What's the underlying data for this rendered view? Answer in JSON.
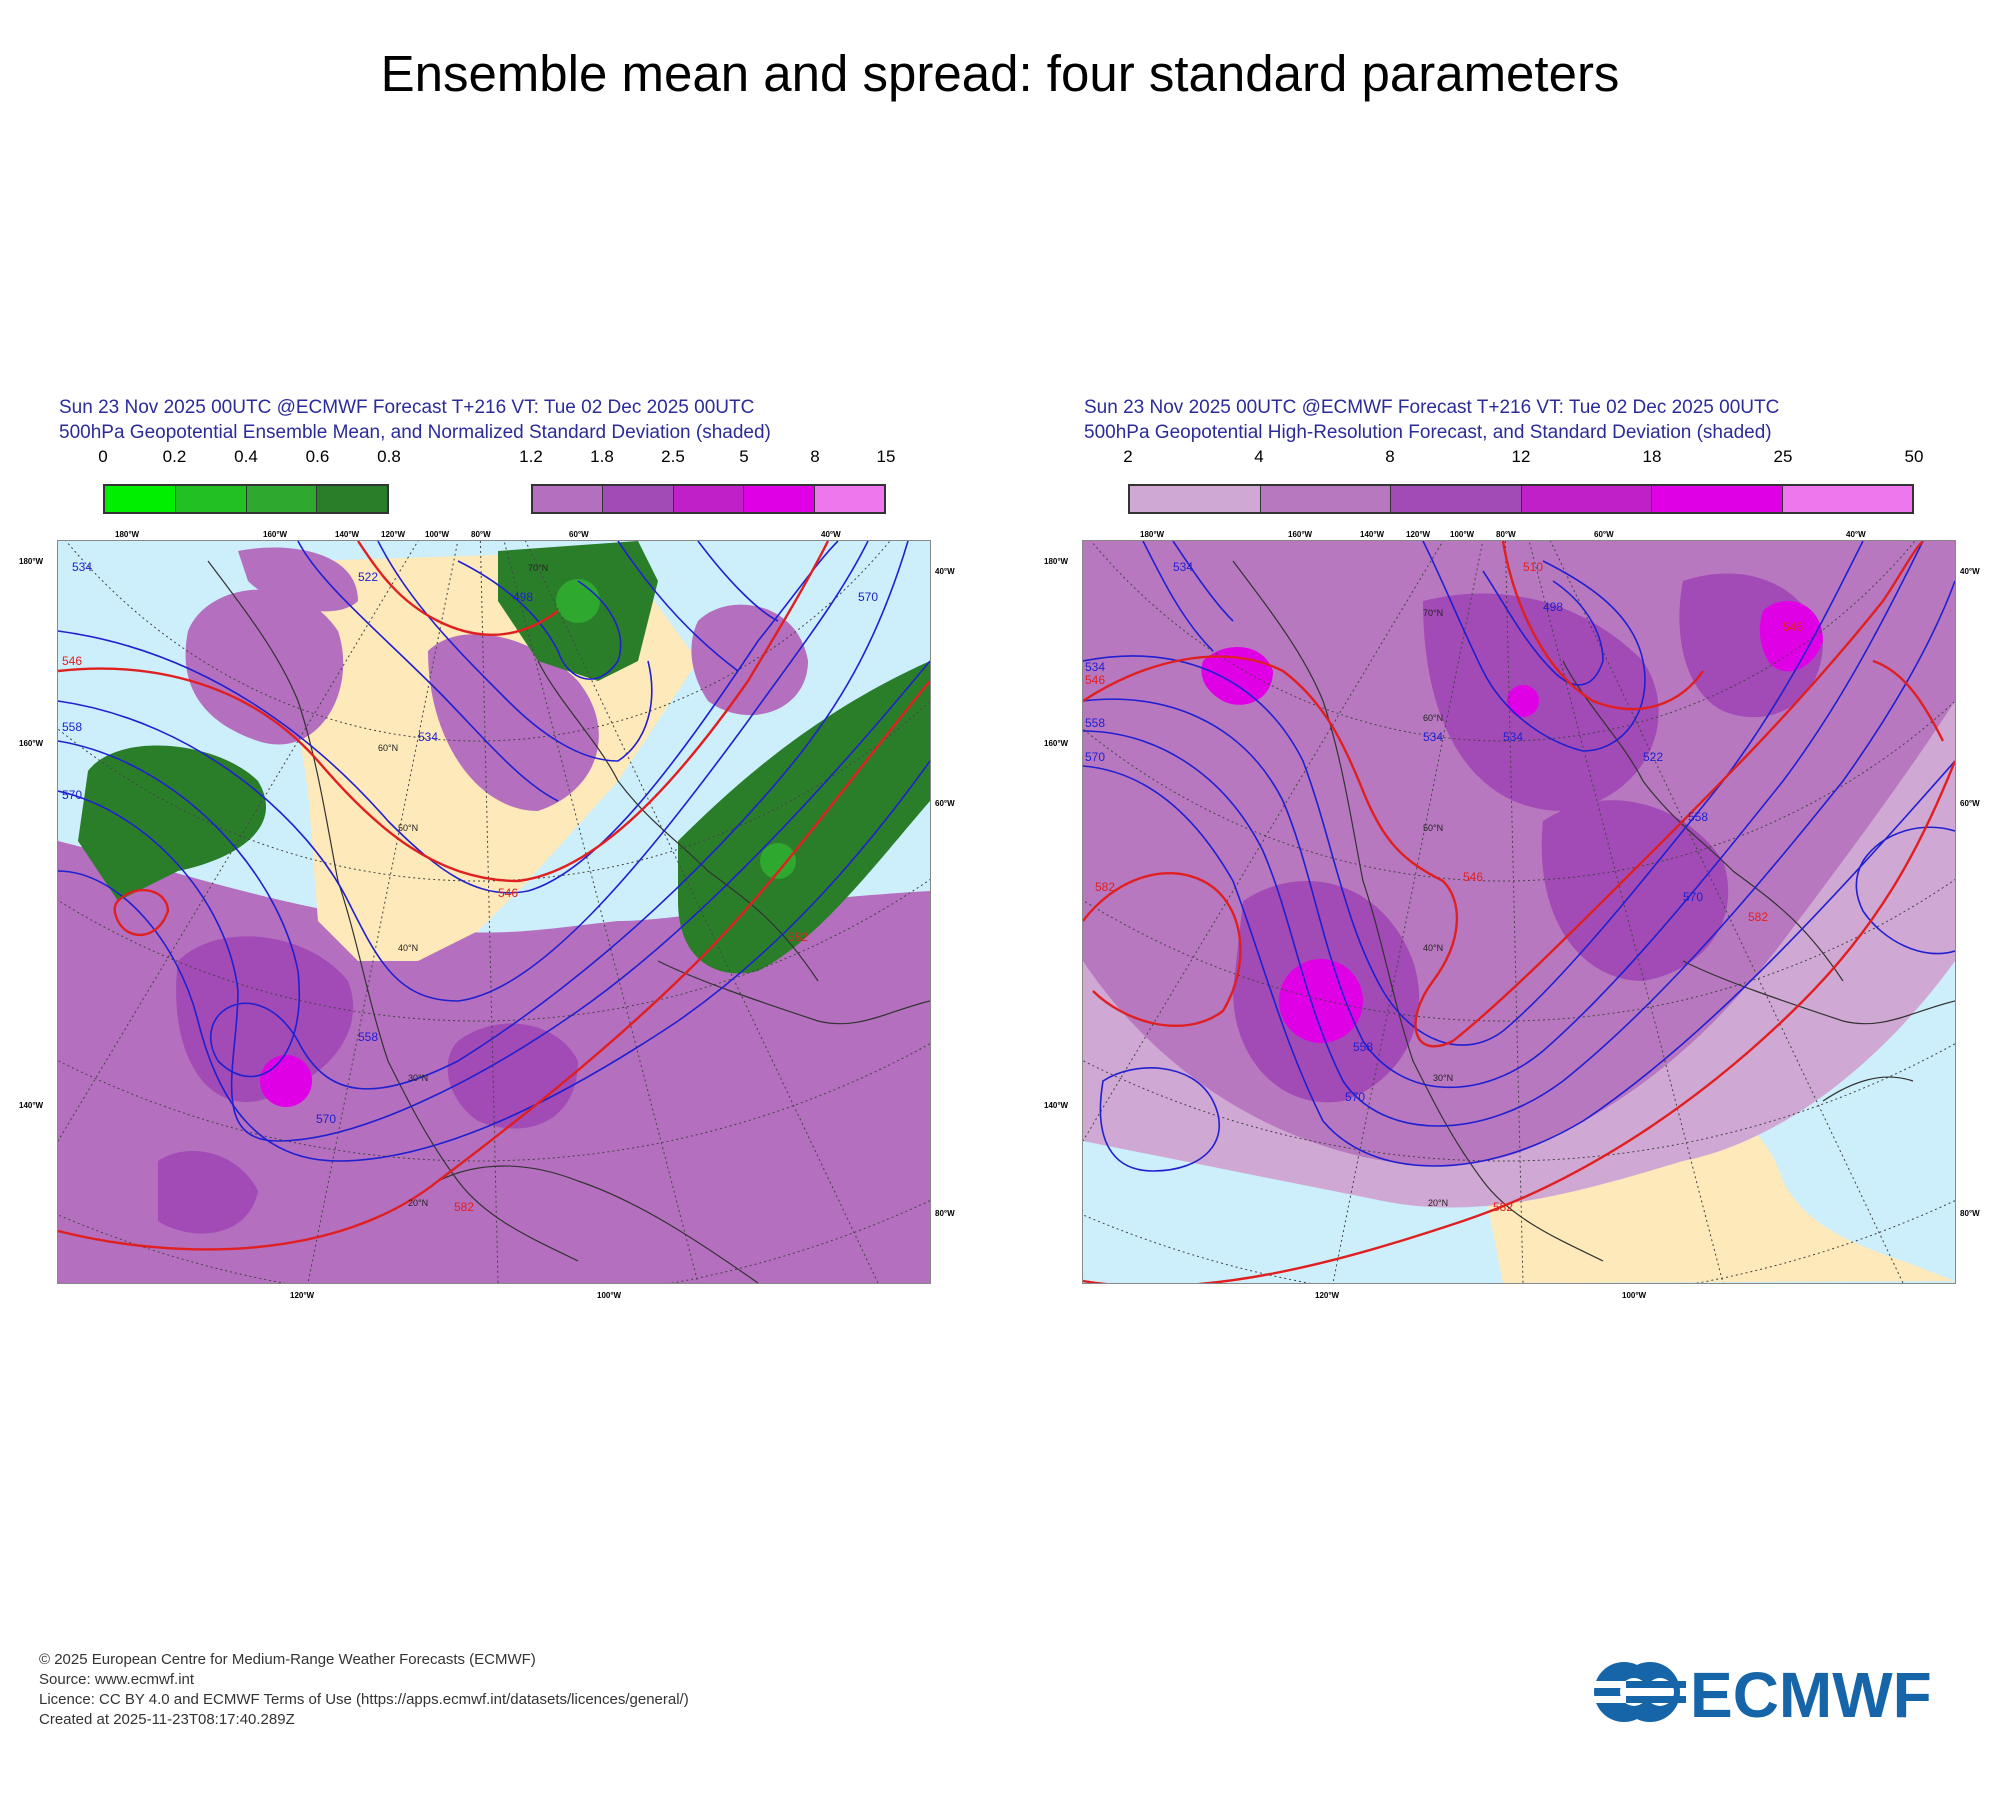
{
  "title": "Ensemble mean and spread: four standard parameters",
  "panels": [
    {
      "line1": "Sun 23 Nov 2025 00UTC @ECMWF Forecast T+216 VT: Tue 02 Dec 2025 00UTC",
      "line2": "500hPa Geopotential Ensemble Mean, and Normalized Standard Deviation (shaded)",
      "legend_green": {
        "ticks": [
          "0",
          "0.2",
          "0.4",
          "0.6",
          "0.8"
        ],
        "colors": [
          "#00ee00",
          "#22c022",
          "#2ea82e",
          "#2a7e2a"
        ]
      },
      "legend_purple": {
        "ticks": [
          "1.2",
          "1.8",
          "2.5",
          "5",
          "8",
          "15"
        ],
        "colors": [
          "#b46fbe",
          "#a24ab6",
          "#c020c8",
          "#e000e6",
          "#ee77ee"
        ]
      },
      "top_lon_labels": [
        "180°W",
        "160°W",
        "140°W",
        "120°W",
        "100°W",
        "80°W",
        "60°W",
        "40°W"
      ],
      "left_lat_labels": [
        "180°W",
        "160°W",
        "140°W"
      ],
      "right_labels": [
        "40°W",
        "60°W",
        "80°W"
      ],
      "bottom_lon_labels": [
        "120°W",
        "100°W"
      ],
      "contour_labels": [
        "534",
        "546",
        "558",
        "570",
        "498",
        "522",
        "582"
      ],
      "lat_labels": [
        "60°N",
        "50°N",
        "40°N",
        "30°N",
        "20°N",
        "70°N"
      ]
    },
    {
      "line1": "Sun 23 Nov 2025 00UTC @ECMWF Forecast T+216 VT: Tue 02 Dec 2025 00UTC",
      "line2": "500hPa Geopotential High-Resolution Forecast, and Standard Deviation (shaded)",
      "legend": {
        "ticks": [
          "2",
          "4",
          "8",
          "12",
          "18",
          "25",
          "50"
        ],
        "colors": [
          "#d0a8d4",
          "#b878c0",
          "#a24ab6",
          "#c020c8",
          "#e000e6",
          "#ee77ee"
        ]
      },
      "top_lon_labels": [
        "180°W",
        "160°W",
        "140°W",
        "120°W",
        "100°W",
        "80°W",
        "60°W",
        "40°W"
      ],
      "left_lat_labels": [
        "180°W",
        "160°W",
        "140°W"
      ],
      "right_labels": [
        "40°W",
        "60°W",
        "80°W"
      ],
      "bottom_lon_labels": [
        "120°W",
        "100°W"
      ],
      "contour_labels": [
        "534",
        "546",
        "558",
        "570",
        "498",
        "522",
        "582",
        "510"
      ],
      "lat_labels": [
        "60°N",
        "50°N",
        "40°N",
        "30°N",
        "20°N",
        "70°N"
      ]
    }
  ],
  "footer": {
    "copyright": "© 2025 European Centre for Medium-Range Weather Forecasts (ECMWF)",
    "source": "Source: www.ecmwf.int",
    "licence": "Licence: CC BY 4.0 and ECMWF Terms of Use (https://apps.ecmwf.int/datasets/licences/general/)",
    "created": "Created at 2025-11-23T08:17:40.289Z"
  },
  "logo_text": "ECMWF",
  "colors": {
    "ocean": "#cdeefb",
    "land_pos": "#fde9b9",
    "contour_blue": "#2020d0",
    "contour_red": "#e02020",
    "title_blue": "#2b2b9a",
    "logo_blue": "#1565a8"
  }
}
